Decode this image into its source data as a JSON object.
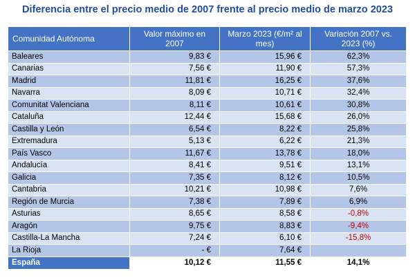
{
  "title": "Diferencia entre el precio medio de 2007 frente al precio medio de marzo 2023",
  "headers": {
    "col1": "Comunidad Autónoma",
    "col2": "Valor máximo en 2007",
    "col3": "Marzo 2023 (€/m² al mes)",
    "col4": "Variación 2007 vs. 2023 (%)"
  },
  "rows": [
    {
      "name": "Baleares",
      "max2007": "9,83 €",
      "mar2023": "15,96 €",
      "var": "62,3%"
    },
    {
      "name": "Canarias",
      "max2007": "7,56 €",
      "mar2023": "11,90 €",
      "var": "57,3%"
    },
    {
      "name": "Madrid",
      "max2007": "11,81 €",
      "mar2023": "16,25 €",
      "var": "37,6%"
    },
    {
      "name": "Navarra",
      "max2007": "8,09 €",
      "mar2023": "10,71 €",
      "var": "32,4%"
    },
    {
      "name": "Comunitat Valenciana",
      "max2007": "8,11 €",
      "mar2023": "10,61 €",
      "var": "30,8%"
    },
    {
      "name": "Cataluña",
      "max2007": "12,44 €",
      "mar2023": "15,68 €",
      "var": "26,0%"
    },
    {
      "name": "Castilla y León",
      "max2007": "6,54 €",
      "mar2023": "8,22 €",
      "var": "25,8%"
    },
    {
      "name": "Extremadura",
      "max2007": "5,13 €",
      "mar2023": "6,22 €",
      "var": "21,3%"
    },
    {
      "name": "País Vasco",
      "max2007": "11,67 €",
      "mar2023": "13,78 €",
      "var": "18,0%"
    },
    {
      "name": "Andalucía",
      "max2007": "8,41 €",
      "mar2023": "9,51 €",
      "var": "13,1%"
    },
    {
      "name": "Galicia",
      "max2007": "7,35 €",
      "mar2023": "8,12 €",
      "var": "10,5%"
    },
    {
      "name": "Cantabria",
      "max2007": "10,21 €",
      "mar2023": "10,98 €",
      "var": "7,6%"
    },
    {
      "name": "Región de Murcia",
      "max2007": "7,38 €",
      "mar2023": "7,89 €",
      "var": "6,9%"
    },
    {
      "name": "Asturias",
      "max2007": "8,65 €",
      "mar2023": "8,58 €",
      "var": "-0,8%",
      "negative": true
    },
    {
      "name": "Aragón",
      "max2007": "9,75 €",
      "mar2023": "8,83 €",
      "var": "-9,4%",
      "negative": true
    },
    {
      "name": "Castilla-La Mancha",
      "max2007": "7,24 €",
      "mar2023": "6,10 €",
      "var": "-15,8%",
      "negative": true
    },
    {
      "name": "La Rioja",
      "max2007": "-   €",
      "mar2023": "7,64 €",
      "var": ""
    }
  ],
  "total": {
    "name": "España",
    "max2007": "10,12 €",
    "mar2023": "11,55 €",
    "var": "14,1%"
  },
  "colors": {
    "title": "#1f4e9c",
    "header_bg": "#4472c4",
    "row_dark": "#b4c6e7",
    "row_light": "#dae3f3",
    "negative": "#c00000"
  }
}
